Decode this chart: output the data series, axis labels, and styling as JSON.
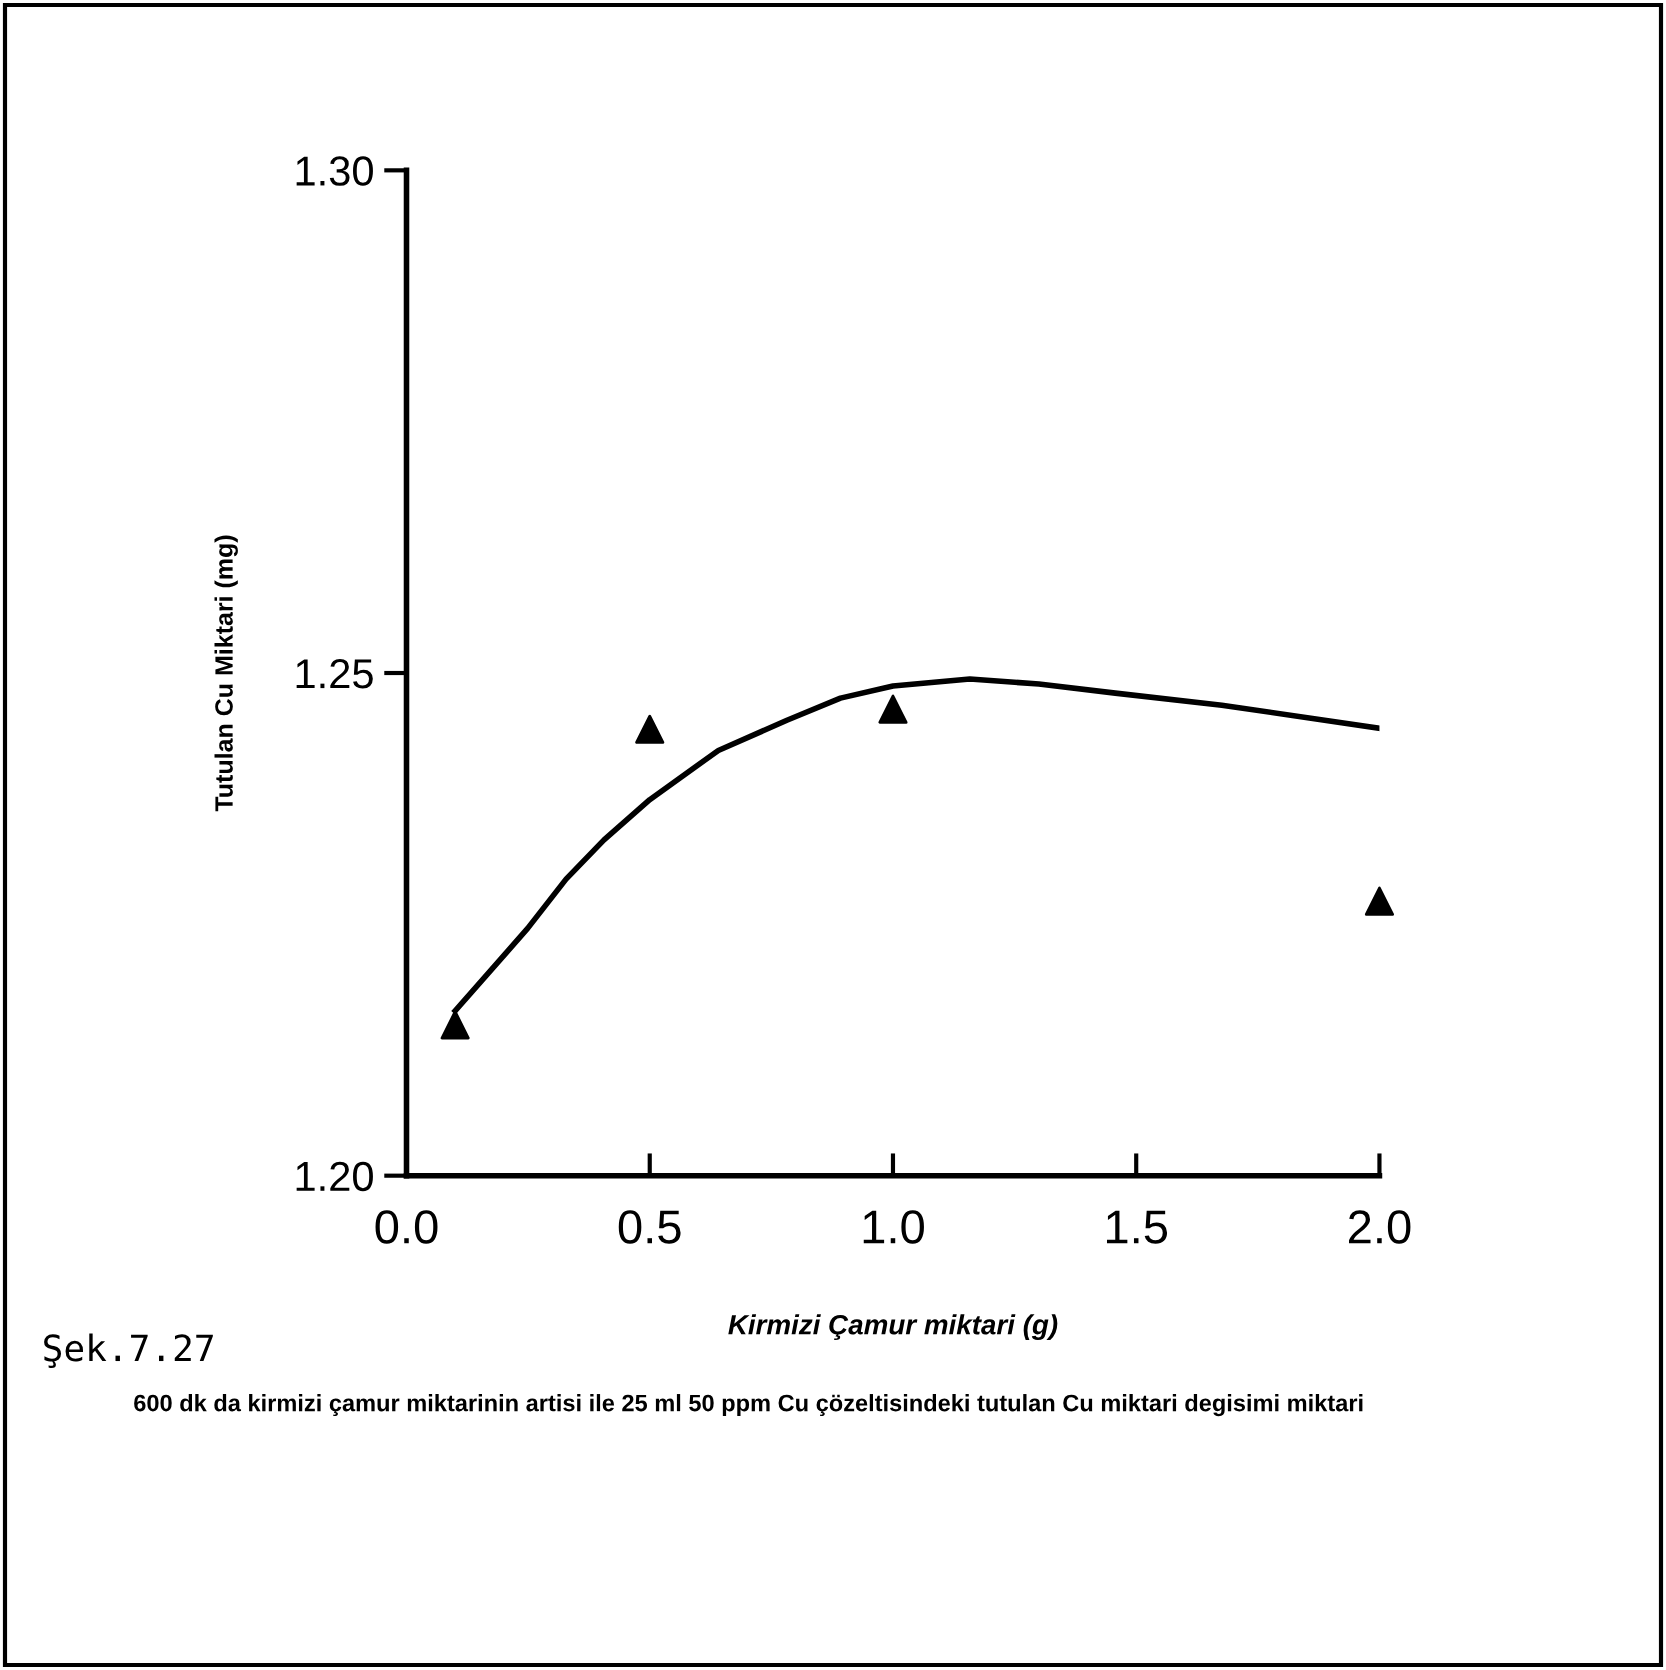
{
  "chart_data": {
    "type": "scatter",
    "xlabel": "Kirmizi Çamur miktari (g)",
    "ylabel": "Tutulan Cu Miktari (mg)",
    "x": [
      0.1,
      0.5,
      1.0,
      2.0
    ],
    "series": [
      {
        "color": "#000000",
        "marker": "triangle",
        "values": [
          1.215,
          1.2444,
          1.2464,
          1.2273
        ]
      },
      {
        "type": "line",
        "color": "#000000",
        "marker": "none",
        "line_style": "solid",
        "x": [
          0.1,
          0.249,
          0.328,
          0.406,
          0.5,
          0.641,
          0.782,
          0.892,
          1.0,
          1.158,
          1.3,
          1.457,
          1.676,
          2.0
        ],
        "values": [
          1.2164,
          1.2246,
          1.2295,
          1.2334,
          1.2374,
          1.2423,
          1.2453,
          1.2475,
          1.2487,
          1.2494,
          1.2489,
          1.248,
          1.2468,
          1.2445
        ]
      }
    ],
    "xlim": [
      0.0,
      2.0
    ],
    "ylim": [
      1.2,
      1.3
    ],
    "xticks": [
      {
        "value": 0.0,
        "label": "0.0"
      },
      0.5,
      {
        "value": 1.0,
        "label": "1.0"
      },
      1.5,
      {
        "value": 2.0,
        "label": "2.0"
      }
    ],
    "yticks": [
      {
        "value": 1.2,
        "label": "1.20"
      },
      1.25,
      {
        "value": 1.3,
        "label": "1.30"
      }
    ],
    "grid": false,
    "legend": false,
    "annotations": [
      "Şek.7.27",
      "600 dk da kirmizi çamur miktarinin artisi ile 25 ml 50 ppm Cu çözeltisindeki tutulan Cu miktari degisimi miktari"
    ]
  }
}
